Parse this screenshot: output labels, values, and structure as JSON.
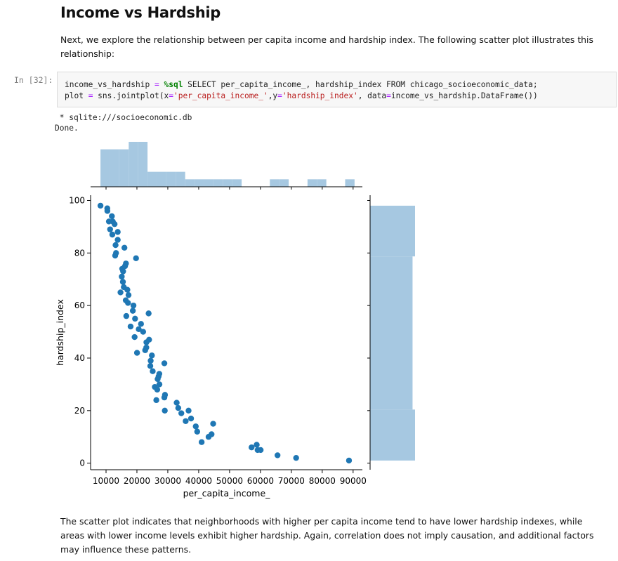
{
  "heading": "Income vs Hardship",
  "intro_text": "Next, we explore the relationship between per capita income and hardship index. The following scatter plot illustrates this relationship:",
  "cell": {
    "prompt": "In [32]:",
    "line1": {
      "a": "income_vs_hardship ",
      "b": "=",
      "c": " ",
      "d": "%sql",
      "e": " SELECT per_capita_income_, hardship_index FROM chicago_socioeconomic_data;"
    },
    "line2": {
      "a": "plot ",
      "b": "=",
      "c": " sns.jointplot(x",
      "d": "=",
      "e": "'per_capita_income_'",
      "f": ",y",
      "g": "=",
      "h": "'hardship_index'",
      "i": ", data",
      "j": "=",
      "k": "income_vs_hardship.DataFrame())"
    }
  },
  "output": {
    "line1": " * sqlite:///socioeconomic.db",
    "line2": "Done."
  },
  "conclusion_text": "The scatter plot indicates that neighborhoods with higher per capita income tend to have lower hardship indexes, while areas with lower income levels exhibit higher hardship. Again, correlation does not imply causation, and additional factors may influence these patterns.",
  "colors": {
    "points": "#1f77b4",
    "hist": "#a6c8e1"
  },
  "chart_data": {
    "type": "scatter",
    "xlabel": "per_capita_income_",
    "ylabel": "hardship_index",
    "xlim": [
      5000,
      93000
    ],
    "ylim": [
      -2.5,
      102
    ],
    "x_ticks": [
      10000,
      20000,
      30000,
      40000,
      50000,
      60000,
      70000,
      80000,
      90000
    ],
    "y_ticks": [
      0,
      20,
      40,
      60,
      80,
      100
    ],
    "points": [
      [
        8201,
        98
      ],
      [
        10402,
        97
      ],
      [
        10432,
        96
      ],
      [
        10934,
        92
      ],
      [
        11317,
        89
      ],
      [
        11888,
        94
      ],
      [
        12034,
        87
      ],
      [
        12171,
        92
      ],
      [
        12765,
        91
      ],
      [
        12961,
        79
      ],
      [
        13089,
        83
      ],
      [
        13231,
        80
      ],
      [
        13785,
        88
      ],
      [
        13781,
        85
      ],
      [
        14685,
        65
      ],
      [
        15089,
        71
      ],
      [
        15246,
        74
      ],
      [
        15461,
        69
      ],
      [
        15528,
        73
      ],
      [
        15754,
        67
      ],
      [
        15957,
        82
      ],
      [
        16148,
        75
      ],
      [
        16386,
        62
      ],
      [
        16444,
        76
      ],
      [
        16563,
        56
      ],
      [
        16907,
        66
      ],
      [
        17104,
        61
      ],
      [
        17285,
        64
      ],
      [
        17949,
        52
      ],
      [
        18672,
        58
      ],
      [
        18881,
        60
      ],
      [
        19252,
        48
      ],
      [
        19398,
        55
      ],
      [
        19713,
        78
      ],
      [
        20039,
        42
      ],
      [
        20588,
        51
      ],
      [
        21323,
        53
      ],
      [
        22014,
        50
      ],
      [
        22677,
        43
      ],
      [
        23040,
        44
      ],
      [
        23074,
        46
      ],
      [
        23791,
        57
      ],
      [
        23939,
        47
      ],
      [
        24336,
        37
      ],
      [
        24454,
        39
      ],
      [
        24846,
        41
      ],
      [
        25113,
        35
      ],
      [
        25797,
        29
      ],
      [
        26282,
        24
      ],
      [
        26576,
        28
      ],
      [
        26709,
        32
      ],
      [
        27006,
        33
      ],
      [
        27249,
        34
      ],
      [
        27280,
        30
      ],
      [
        28887,
        38
      ],
      [
        28887,
        25
      ],
      [
        29026,
        20
      ],
      [
        29087,
        26
      ],
      [
        32875,
        23
      ],
      [
        33385,
        21
      ],
      [
        34381,
        19
      ],
      [
        35787,
        16
      ],
      [
        36723,
        20
      ],
      [
        37524,
        17
      ],
      [
        39056,
        14
      ],
      [
        39523,
        12
      ],
      [
        40959,
        8
      ],
      [
        43198,
        10
      ],
      [
        44164,
        11
      ],
      [
        44689,
        15
      ],
      [
        57123,
        6
      ],
      [
        58779,
        7
      ],
      [
        59077,
        5
      ],
      [
        60058,
        5
      ],
      [
        65526,
        3
      ],
      [
        71551,
        2
      ],
      [
        88669,
        1
      ]
    ],
    "x_hist": {
      "bins": [
        8201,
        11248,
        14295,
        17342,
        20389,
        23436,
        26483,
        29530,
        32577,
        35624,
        38671,
        41718,
        44765,
        47812,
        50859,
        53906,
        56953,
        60000,
        63047,
        66094,
        69141,
        72188,
        75235,
        78282,
        81329,
        84376,
        87423,
        90470
      ],
      "counts": [
        5,
        5,
        5,
        6,
        6,
        2,
        2,
        2,
        2,
        1,
        1,
        1,
        1,
        1,
        1,
        0,
        0,
        0,
        1,
        1,
        0,
        0,
        1,
        1,
        0,
        0,
        1
      ]
    },
    "y_hist": {
      "bins": [
        1,
        20.4,
        78.7,
        98
      ],
      "counts": [
        18,
        17,
        18
      ]
    }
  }
}
